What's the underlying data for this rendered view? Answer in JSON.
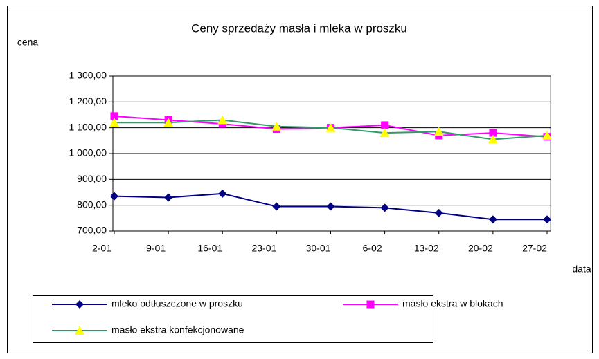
{
  "chart_data": {
    "type": "line",
    "title": "Ceny sprzedaży masła i mleka w proszku",
    "y_label": "cena",
    "x_label": "data",
    "categories": [
      "2-01",
      "9-01",
      "16-01",
      "23-01",
      "30-01",
      "6-02",
      "13-02",
      "20-02",
      "27-02"
    ],
    "series": [
      {
        "name": "mleko odtłuszczone w proszku",
        "color": "#000080",
        "marker": "diamond",
        "marker_color": "#000080",
        "values": [
          835,
          830,
          845,
          795,
          795,
          790,
          770,
          745,
          745
        ]
      },
      {
        "name": "masło ekstra w blokach",
        "color": "#ff00ff",
        "marker": "square",
        "marker_color": "#ff00ff",
        "values": [
          1145,
          1130,
          1115,
          1095,
          1100,
          1110,
          1070,
          1080,
          1065
        ]
      },
      {
        "name": "masło ekstra konfekcjonowane",
        "color": "#339966",
        "marker": "triangle",
        "marker_color": "#ffff00",
        "values": [
          1120,
          1120,
          1130,
          1105,
          1100,
          1080,
          1085,
          1055,
          1070
        ]
      }
    ],
    "ylim": [
      700,
      1300
    ],
    "yticks": [
      {
        "value": 700,
        "label": "700,00"
      },
      {
        "value": 800,
        "label": "800,00"
      },
      {
        "value": 900,
        "label": "900,00"
      },
      {
        "value": 1000,
        "label": "1 000,00"
      },
      {
        "value": 1100,
        "label": "1 100,00"
      },
      {
        "value": 1200,
        "label": "1 200,00"
      },
      {
        "value": 1300,
        "label": "1 300,00"
      }
    ],
    "grid": true
  }
}
